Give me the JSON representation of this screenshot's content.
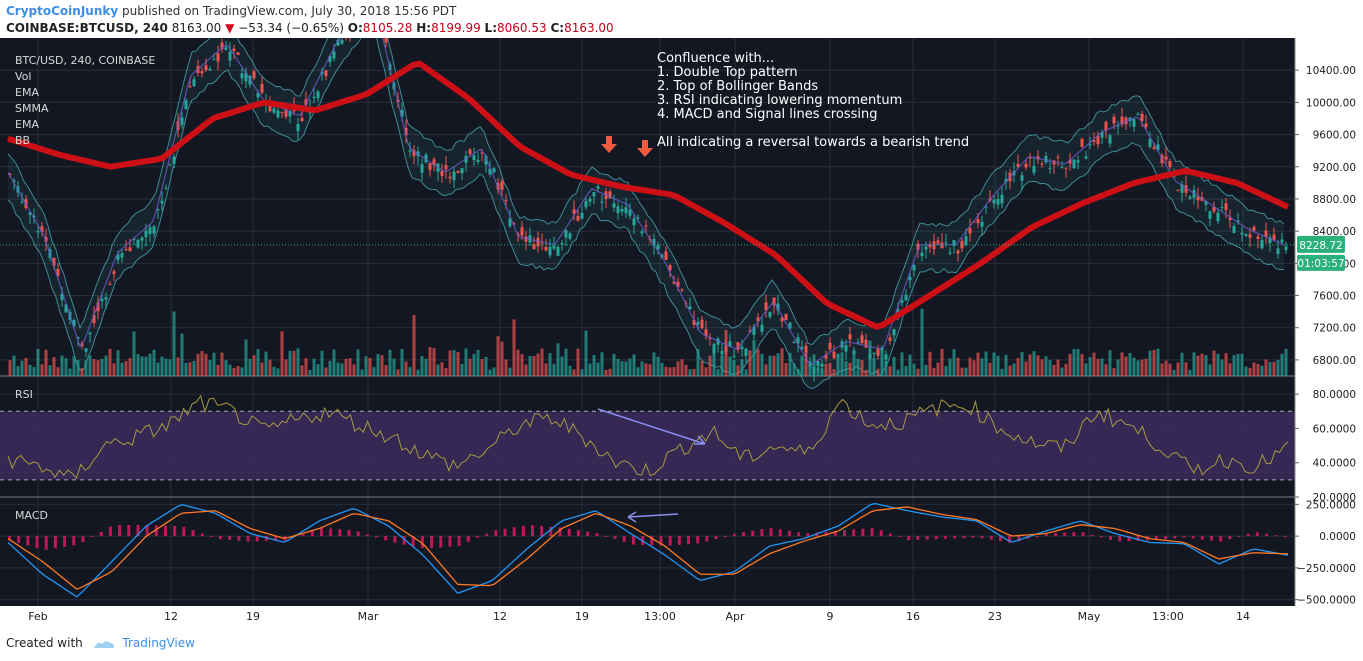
{
  "header": {
    "author": "CryptoCoinJunky",
    "published": "published on TradingView.com, July 30, 2018 15:56 PDT",
    "symbol": "COINBASE:BTCUSD, 240",
    "last": "8163.00",
    "change": "−53.34 (−0.65%)",
    "open_label": "O:",
    "open": "8105.28",
    "high_label": "H:",
    "high": "8199.99",
    "low_label": "L:",
    "low": "8060.53",
    "close_label": "C:",
    "close": "8163.00"
  },
  "footer": {
    "created_with": "Created with",
    "brand": "TradingView"
  },
  "colors": {
    "bg": "#131722",
    "grid": "#2a2e39",
    "up": "#26a69a",
    "down": "#ef5350",
    "ema_slow": "#cc1016",
    "bb": "#4fb9c4",
    "rsi": "#a69940",
    "rsi_band": "#3a2a5a",
    "macd": "#2196f3",
    "signal": "#ff7a22",
    "hist": "#d81b60",
    "arrow": "#ee5a3c",
    "price_label": "#2ab07a"
  },
  "legend": [
    "BTC/USD, 240, COINBASE",
    "Vol",
    "EMA",
    "SMMA",
    "EMA",
    "BB"
  ],
  "annotation": {
    "lines": [
      "Confluence with...",
      "1. Double Top pattern",
      "2. Top of Bollinger Bands",
      "3. RSI indicating lowering momentum",
      "4. MACD and Signal lines crossing",
      "",
      "All indicating a reversal towards a bearish trend"
    ]
  },
  "price_labels": {
    "current": "8228.72",
    "countdown": "01:03:57"
  },
  "chart_data": [
    {
      "type": "line",
      "title": "BTC/USD, 240, COINBASE",
      "x_ticks": [
        "Feb",
        "12",
        "19",
        "Mar",
        "12",
        "19",
        "13:00",
        "Apr",
        "9",
        "16",
        "23",
        "May",
        "13:00",
        "14"
      ],
      "y_ticks": [
        "10400.00",
        "10000.00",
        "9600.00",
        "9200.00",
        "8800.00",
        "8400.00",
        "8000.00",
        "7600.00",
        "7200.00",
        "6800.00"
      ],
      "ylim": [
        6600,
        10800
      ],
      "series": [
        {
          "name": "BTC/USD",
          "x": [
            "Feb 1",
            "Feb 4",
            "Feb 6",
            "Feb 9",
            "Feb 12",
            "Feb 16",
            "Feb 20",
            "Feb 23",
            "Feb 26",
            "Mar 1",
            "Mar 5",
            "Mar 8",
            "Mar 10",
            "Mar 13",
            "Mar 16",
            "Mar 19",
            "Mar 21",
            "Mar 24",
            "Mar 26",
            "Mar 29",
            "Mar 31",
            "Apr 3",
            "Apr 6",
            "Apr 9",
            "Apr 11",
            "Apr 13",
            "Apr 16",
            "Apr 20",
            "Apr 24",
            "Apr 27",
            "May 2",
            "May 6",
            "May 9",
            "May 12",
            "May 15",
            "May 18"
          ],
          "values": [
            9100,
            8300,
            6900,
            8100,
            8500,
            10300,
            10700,
            10000,
            9800,
            10700,
            11300,
            9400,
            9100,
            9400,
            8300,
            8200,
            8900,
            8700,
            8000,
            7100,
            6900,
            7500,
            6700,
            7000,
            6900,
            8200,
            8200,
            8800,
            9300,
            9200,
            9600,
            9800,
            9000,
            8700,
            8400,
            8200
          ]
        },
        {
          "name": "EMA",
          "x": [
            "Feb 1",
            "Feb 5",
            "Feb 9",
            "Feb 13",
            "Feb 17",
            "Feb 22",
            "Feb 26",
            "Mar 1",
            "Mar 5",
            "Mar 9",
            "Mar 13",
            "Mar 17",
            "Mar 21",
            "Mar 25",
            "Mar 29",
            "Apr 2",
            "Apr 6",
            "Apr 11",
            "Apr 16",
            "Apr 21",
            "Apr 26",
            "May 1",
            "May 5",
            "May 10",
            "May 14",
            "May 18"
          ],
          "values": [
            9550,
            9350,
            9200,
            9300,
            9800,
            10000,
            9900,
            10100,
            10500,
            10050,
            9450,
            9100,
            8950,
            8850,
            8500,
            8100,
            7500,
            7200,
            7600,
            8000,
            8450,
            8750,
            9000,
            9150,
            9000,
            8700
          ]
        }
      ]
    },
    {
      "type": "line",
      "title": "RSI",
      "y_ticks": [
        "80.0000",
        "60.0000",
        "40.0000",
        "20.0000"
      ],
      "ylim": [
        20,
        90
      ],
      "bands": [
        30,
        70
      ],
      "series": [
        {
          "name": "RSI",
          "values": [
            42,
            38,
            30,
            50,
            55,
            62,
            75,
            70,
            58,
            65,
            70,
            62,
            55,
            45,
            38,
            48,
            62,
            66,
            55,
            40,
            35,
            48,
            58,
            42,
            50,
            45,
            76,
            62,
            64,
            72,
            74,
            60,
            52,
            48,
            70,
            62,
            50,
            35,
            42,
            38,
            48
          ]
        }
      ]
    },
    {
      "type": "line",
      "title": "MACD",
      "y_ticks": [
        "250.0000",
        "0.0000",
        "−250.0000",
        "−500.0000"
      ],
      "ylim": [
        -550,
        300
      ],
      "series": [
        {
          "name": "MACD",
          "values": [
            -50,
            -300,
            -480,
            -200,
            80,
            250,
            180,
            20,
            -50,
            120,
            220,
            80,
            -150,
            -450,
            -350,
            -100,
            120,
            200,
            20,
            -150,
            -350,
            -280,
            -80,
            -20,
            80,
            260,
            200,
            150,
            120,
            -50,
            40,
            120,
            20,
            -50,
            -60,
            -220,
            -100,
            -150
          ]
        },
        {
          "name": "Signal",
          "values": [
            -20,
            -200,
            -420,
            -280,
            0,
            180,
            200,
            60,
            -20,
            60,
            180,
            120,
            -60,
            -380,
            -390,
            -180,
            60,
            180,
            80,
            -80,
            -300,
            -300,
            -140,
            -40,
            40,
            200,
            230,
            170,
            130,
            0,
            20,
            90,
            60,
            -20,
            -50,
            -180,
            -130,
            -140
          ]
        }
      ]
    }
  ]
}
